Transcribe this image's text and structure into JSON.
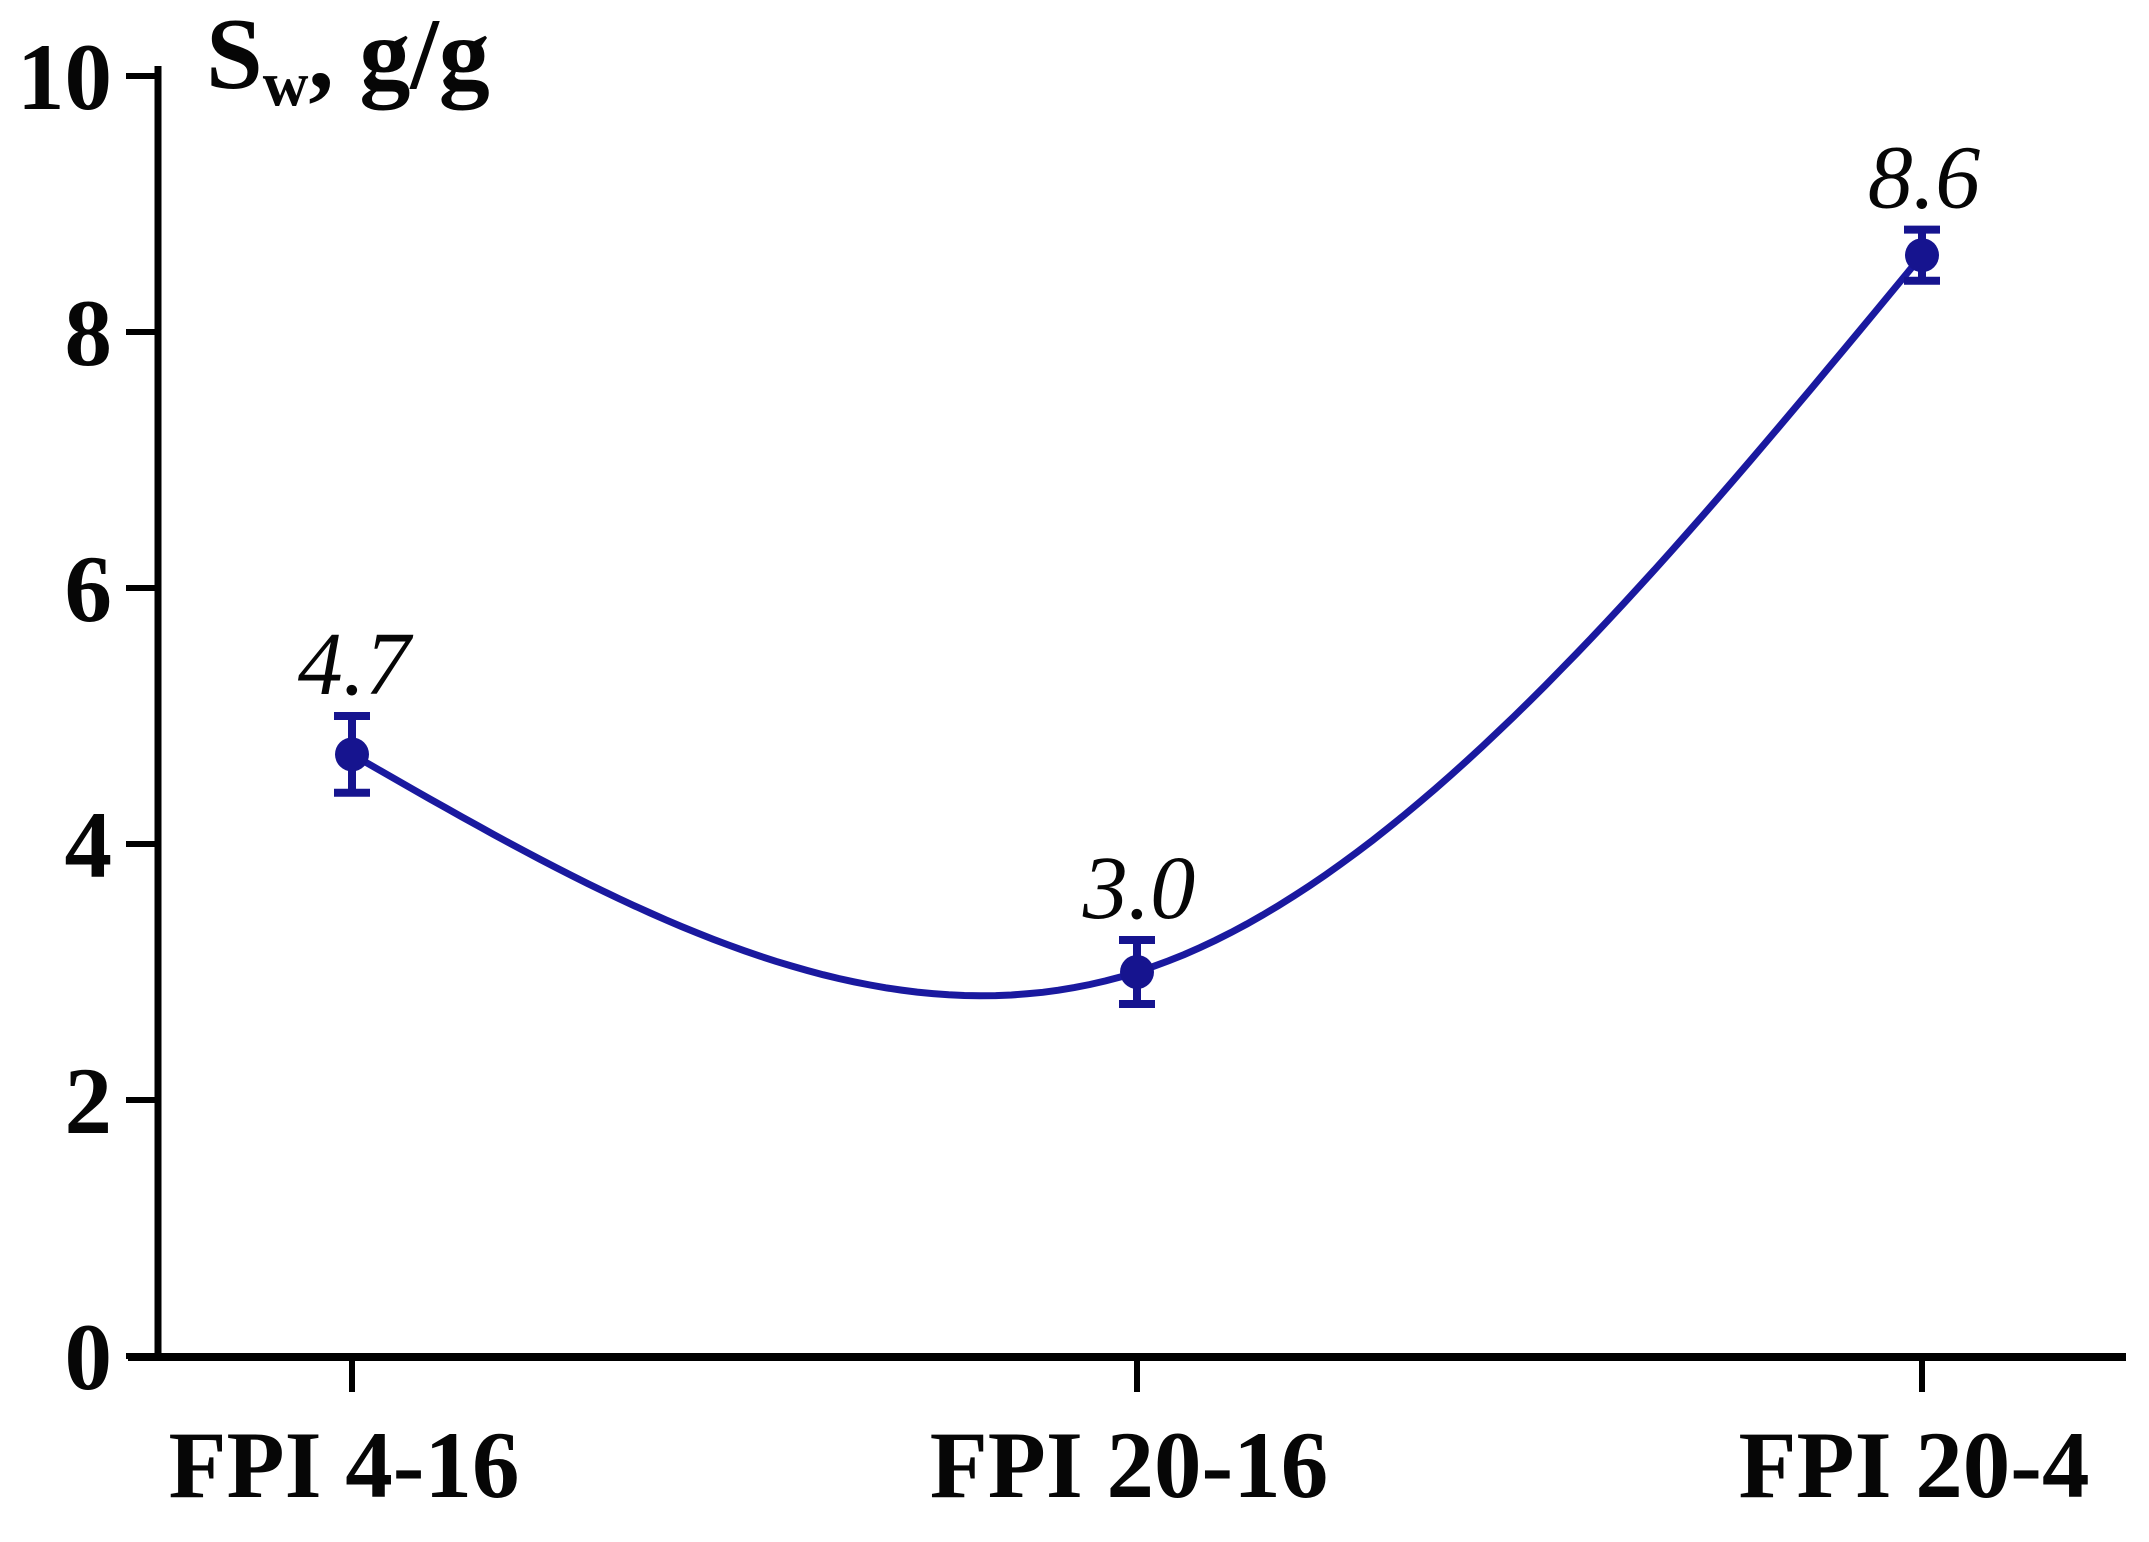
{
  "figure": {
    "background": "#ffffff",
    "text_color": "#060606",
    "y_axis_title": {
      "main": "S",
      "sub": "w",
      "rest": ", g/g"
    }
  },
  "chart_data": {
    "type": "line",
    "categories": [
      "FPI 4-16",
      "FPI 20-16",
      "FPI 20-4"
    ],
    "series": [
      {
        "name": "Sw",
        "values": [
          4.7,
          3.0,
          8.6
        ],
        "errors": [
          0.3,
          0.25,
          0.2
        ]
      }
    ],
    "point_labels": [
      "4.7",
      "3.0",
      "8.6"
    ],
    "ylabel": "Sw, g/g",
    "ylim": [
      0,
      10
    ],
    "yticks": [
      "0",
      "2",
      "4",
      "6",
      "8",
      "10"
    ],
    "grid": false,
    "legend": false,
    "marker": "circle",
    "error_bars": true,
    "curve": "natural-cubic-spline",
    "line_color": "#1a199f",
    "marker_color": "#16148f",
    "axis_color": "#000000"
  }
}
